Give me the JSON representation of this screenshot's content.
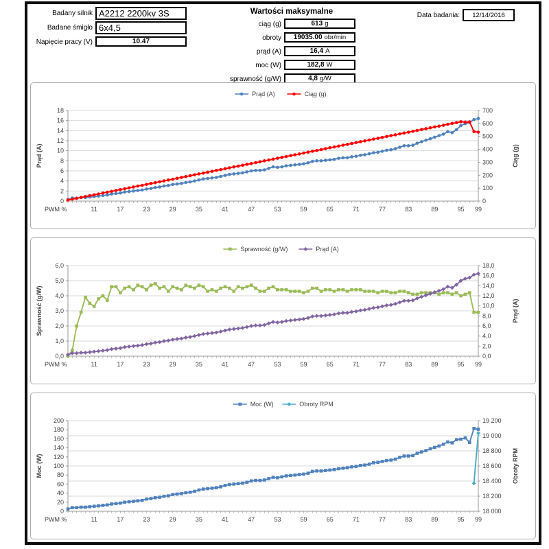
{
  "header": {
    "fields": [
      {
        "label": "Badany silnik",
        "value": "A2212 2200kv 3S"
      },
      {
        "label": "Badane śmigło",
        "value": "6x4,5"
      },
      {
        "label": "Napięcie pracy (V)",
        "value": "10.47"
      }
    ],
    "max_section": {
      "title": "Wartości maksymalne",
      "rows": [
        {
          "label": "ciąg (g)",
          "value": "613",
          "unit": "g"
        },
        {
          "label": "obroty",
          "value": "19035.00",
          "unit": "obr/min"
        },
        {
          "label": "prąd  (A)",
          "value": "16,4",
          "unit": "A"
        },
        {
          "label": "moc  (W)",
          "value": "182,8",
          "unit": "W"
        },
        {
          "label": "sprawność (g/W)",
          "value": "4,8",
          "unit": "g/W"
        }
      ]
    },
    "date": {
      "label": "Data badania:",
      "value": "12/14/2016"
    }
  },
  "colors": {
    "blue": "#4F81BD",
    "red": "#FF0000",
    "green": "#9BBB59",
    "purple": "#8064A2",
    "teal": "#4BACC6",
    "grid": "#D9D9D9",
    "axis": "#9A9A9A"
  },
  "chart_data": [
    {
      "type": "line",
      "xlabel": "PWM %",
      "legend": "top",
      "grid": "on",
      "gridlines_from": "left",
      "x": [
        5,
        6,
        7,
        8,
        9,
        10,
        11,
        12,
        13,
        14,
        15,
        16,
        17,
        18,
        19,
        20,
        21,
        22,
        23,
        24,
        25,
        26,
        27,
        28,
        29,
        30,
        31,
        32,
        33,
        34,
        35,
        36,
        37,
        38,
        39,
        40,
        41,
        42,
        43,
        44,
        45,
        46,
        47,
        48,
        49,
        50,
        51,
        52,
        53,
        54,
        55,
        56,
        57,
        58,
        59,
        60,
        61,
        62,
        63,
        64,
        65,
        66,
        67,
        68,
        69,
        70,
        71,
        72,
        73,
        74,
        75,
        76,
        77,
        78,
        79,
        80,
        81,
        82,
        83,
        84,
        85,
        86,
        87,
        88,
        89,
        90,
        91,
        92,
        93,
        94,
        95,
        96,
        97,
        98,
        99
      ],
      "x_tick_labels": [
        11,
        17,
        23,
        29,
        35,
        41,
        47,
        53,
        59,
        65,
        71,
        77,
        83,
        89,
        95,
        99
      ],
      "left_axis": {
        "title": "Prąd (A)",
        "min": 0,
        "max": 18,
        "tick_labels": [
          "0",
          "2",
          "4",
          "6",
          "8",
          "10",
          "12",
          "14",
          "16",
          "18"
        ]
      },
      "right_axis": {
        "title": "Ciąg (g)",
        "min": 0,
        "max": 700,
        "tick_labels": [
          "0",
          "100",
          "200",
          "300",
          "400",
          "500",
          "600",
          "700"
        ]
      },
      "series": [
        {
          "name": "Prąd (A)",
          "axis": "left",
          "color": "#4F81BD",
          "marker": "circle",
          "values": [
            0.3,
            0.6,
            0.6,
            0.7,
            0.7,
            0.8,
            0.9,
            1.0,
            1.1,
            1.2,
            1.4,
            1.5,
            1.6,
            1.8,
            1.9,
            2.0,
            2.1,
            2.2,
            2.4,
            2.5,
            2.7,
            2.8,
            3.0,
            3.1,
            3.3,
            3.4,
            3.5,
            3.7,
            3.8,
            4.0,
            4.2,
            4.4,
            4.5,
            4.6,
            4.7,
            4.9,
            5.1,
            5.3,
            5.4,
            5.5,
            5.6,
            5.8,
            6.0,
            6.1,
            6.1,
            6.2,
            6.5,
            6.8,
            6.7,
            6.8,
            7.0,
            7.1,
            7.2,
            7.3,
            7.4,
            7.6,
            7.9,
            8.0,
            8.0,
            8.1,
            8.2,
            8.3,
            8.5,
            8.6,
            8.6,
            8.8,
            8.9,
            9.1,
            9.2,
            9.4,
            9.6,
            9.7,
            9.9,
            10.1,
            10.2,
            10.4,
            10.7,
            11.0,
            11.0,
            11.1,
            11.5,
            11.8,
            12.1,
            12.4,
            12.7,
            13.0,
            13.3,
            13.8,
            13.6,
            14.2,
            15.0,
            15.4,
            15.6,
            16.2,
            16.4
          ]
        },
        {
          "name": "Ciąg (g)",
          "axis": "right",
          "color": "#FF0000",
          "marker": "circle",
          "values": [
            8,
            15,
            21,
            28,
            35,
            42,
            48,
            55,
            62,
            69,
            75,
            82,
            89,
            95,
            102,
            109,
            116,
            122,
            129,
            136,
            142,
            149,
            156,
            163,
            169,
            176,
            183,
            189,
            196,
            203,
            210,
            216,
            223,
            230,
            237,
            243,
            250,
            257,
            264,
            270,
            277,
            284,
            290,
            297,
            304,
            311,
            317,
            324,
            331,
            338,
            344,
            351,
            358,
            364,
            371,
            378,
            385,
            391,
            398,
            405,
            412,
            418,
            425,
            432,
            438,
            445,
            452,
            459,
            465,
            472,
            479,
            485,
            492,
            499,
            506,
            512,
            519,
            526,
            532,
            539,
            546,
            553,
            559,
            566,
            573,
            579,
            586,
            593,
            600,
            606,
            613,
            610,
            612,
            537,
            533
          ]
        }
      ]
    },
    {
      "type": "line",
      "xlabel": "PWM %",
      "legend": "top",
      "grid": "on",
      "gridlines_from": "left",
      "x": [
        5,
        6,
        7,
        8,
        9,
        10,
        11,
        12,
        13,
        14,
        15,
        16,
        17,
        18,
        19,
        20,
        21,
        22,
        23,
        24,
        25,
        26,
        27,
        28,
        29,
        30,
        31,
        32,
        33,
        34,
        35,
        36,
        37,
        38,
        39,
        40,
        41,
        42,
        43,
        44,
        45,
        46,
        47,
        48,
        49,
        50,
        51,
        52,
        53,
        54,
        55,
        56,
        57,
        58,
        59,
        60,
        61,
        62,
        63,
        64,
        65,
        66,
        67,
        68,
        69,
        70,
        71,
        72,
        73,
        74,
        75,
        76,
        77,
        78,
        79,
        80,
        81,
        82,
        83,
        84,
        85,
        86,
        87,
        88,
        89,
        90,
        91,
        92,
        93,
        94,
        95,
        96,
        97,
        98,
        99
      ],
      "x_tick_labels": [
        11,
        17,
        23,
        29,
        35,
        41,
        47,
        53,
        59,
        65,
        71,
        77,
        83,
        89,
        95,
        99
      ],
      "left_axis": {
        "title": "Sprawność (g/W)",
        "min": 0,
        "max": 6,
        "tick_labels": [
          "0,0",
          "1,0",
          "2,0",
          "3,0",
          "4,0",
          "5,0",
          "6,0"
        ]
      },
      "right_axis": {
        "title": "Prąd (A)",
        "min": 0,
        "max": 18,
        "tick_labels": [
          "0,0",
          "2,0",
          "4,0",
          "6,0",
          "8,0",
          "10,0",
          "12,0",
          "14,0",
          "16,0",
          "18,0"
        ]
      },
      "series": [
        {
          "name": "Sprawność (g/W)",
          "axis": "left",
          "color": "#9BBB59",
          "marker": "square",
          "values": [
            0.0,
            0.4,
            2.0,
            2.9,
            3.9,
            3.5,
            3.3,
            3.8,
            4.0,
            3.7,
            4.6,
            4.6,
            4.2,
            4.5,
            4.6,
            4.4,
            4.7,
            4.6,
            4.4,
            4.7,
            4.8,
            4.5,
            4.6,
            4.3,
            4.6,
            4.5,
            4.4,
            4.7,
            4.6,
            4.5,
            4.7,
            4.6,
            4.3,
            4.4,
            4.3,
            4.5,
            4.6,
            4.5,
            4.3,
            4.6,
            4.5,
            4.6,
            4.7,
            4.5,
            4.3,
            4.3,
            4.5,
            4.6,
            4.4,
            4.4,
            4.4,
            4.3,
            4.3,
            4.3,
            4.2,
            4.3,
            4.5,
            4.5,
            4.3,
            4.4,
            4.4,
            4.3,
            4.4,
            4.4,
            4.3,
            4.4,
            4.4,
            4.4,
            4.3,
            4.3,
            4.3,
            4.2,
            4.3,
            4.3,
            4.2,
            4.2,
            4.3,
            4.3,
            4.2,
            4.1,
            4.1,
            4.2,
            4.2,
            4.2,
            4.2,
            4.1,
            4.2,
            4.2,
            4.1,
            4.2,
            4.0,
            4.1,
            4.2,
            2.9,
            2.9
          ]
        },
        {
          "name": "Prąd (A)",
          "axis": "right",
          "color": "#8064A2",
          "marker": "diamond",
          "values": [
            0.3,
            0.6,
            0.6,
            0.7,
            0.7,
            0.8,
            0.9,
            1.0,
            1.1,
            1.2,
            1.4,
            1.5,
            1.6,
            1.8,
            1.9,
            2.0,
            2.1,
            2.2,
            2.4,
            2.5,
            2.7,
            2.8,
            3.0,
            3.1,
            3.3,
            3.4,
            3.5,
            3.7,
            3.8,
            4.0,
            4.2,
            4.4,
            4.5,
            4.6,
            4.7,
            4.9,
            5.1,
            5.3,
            5.4,
            5.5,
            5.6,
            5.8,
            6.0,
            6.1,
            6.1,
            6.2,
            6.5,
            6.8,
            6.7,
            6.8,
            7.0,
            7.1,
            7.2,
            7.3,
            7.4,
            7.6,
            7.9,
            8.0,
            8.0,
            8.1,
            8.2,
            8.3,
            8.5,
            8.6,
            8.6,
            8.8,
            8.9,
            9.1,
            9.2,
            9.4,
            9.6,
            9.7,
            9.9,
            10.1,
            10.2,
            10.4,
            10.7,
            11.0,
            11.0,
            11.1,
            11.5,
            11.8,
            12.1,
            12.4,
            12.7,
            13.0,
            13.3,
            13.8,
            13.6,
            14.2,
            15.0,
            15.4,
            15.6,
            16.2,
            16.4
          ]
        }
      ]
    },
    {
      "type": "line",
      "xlabel": "PWM %",
      "legend": "top",
      "grid": "on",
      "gridlines_from": "right",
      "x": [
        5,
        6,
        7,
        8,
        9,
        10,
        11,
        12,
        13,
        14,
        15,
        16,
        17,
        18,
        19,
        20,
        21,
        22,
        23,
        24,
        25,
        26,
        27,
        28,
        29,
        30,
        31,
        32,
        33,
        34,
        35,
        36,
        37,
        38,
        39,
        40,
        41,
        42,
        43,
        44,
        45,
        46,
        47,
        48,
        49,
        50,
        51,
        52,
        53,
        54,
        55,
        56,
        57,
        58,
        59,
        60,
        61,
        62,
        63,
        64,
        65,
        66,
        67,
        68,
        69,
        70,
        71,
        72,
        73,
        74,
        75,
        76,
        77,
        78,
        79,
        80,
        81,
        82,
        83,
        84,
        85,
        86,
        87,
        88,
        89,
        90,
        91,
        92,
        93,
        94,
        95,
        96,
        97,
        98,
        99
      ],
      "x_tick_labels": [
        11,
        17,
        23,
        29,
        35,
        41,
        47,
        53,
        59,
        65,
        71,
        77,
        83,
        89,
        95,
        99
      ],
      "left_axis": {
        "title": "Moc (W)",
        "min": 0,
        "max": 200,
        "tick_labels": [
          "0",
          "20",
          "40",
          "60",
          "80",
          "100",
          "120",
          "140",
          "160",
          "180",
          "200"
        ]
      },
      "right_axis": {
        "title": "Obroty  RPM",
        "min": 18000,
        "max": 19200,
        "tick_labels": [
          "18 000",
          "18 200",
          "18 400",
          "18 600",
          "18 800",
          "19 000",
          "19 200"
        ]
      },
      "series": [
        {
          "name": "Moc (W)",
          "axis": "left",
          "color": "#4F81BD",
          "marker": "square",
          "values": [
            5,
            8,
            8,
            9,
            9,
            10,
            11,
            12,
            13,
            14,
            16,
            17,
            18,
            20,
            21,
            22,
            23,
            24,
            27,
            28,
            30,
            31,
            33,
            34,
            37,
            38,
            39,
            41,
            42,
            44,
            47,
            49,
            50,
            51,
            52,
            54,
            57,
            59,
            60,
            61,
            62,
            64,
            67,
            68,
            68,
            69,
            72,
            75,
            74,
            76,
            78,
            79,
            80,
            81,
            82,
            84,
            88,
            89,
            89,
            90,
            91,
            92,
            94,
            95,
            96,
            98,
            99,
            101,
            102,
            104,
            107,
            108,
            110,
            112,
            113,
            115,
            119,
            122,
            122,
            123,
            128,
            131,
            134,
            138,
            141,
            144,
            148,
            153,
            151,
            158,
            159,
            162,
            152,
            182.8,
            181
          ]
        },
        {
          "name": "Obroty RPM",
          "axis": "right",
          "color": "#4BACC6",
          "marker": "diamond",
          "points": [
            [
              98,
              18370
            ],
            [
              99,
              19035
            ]
          ]
        }
      ]
    }
  ]
}
